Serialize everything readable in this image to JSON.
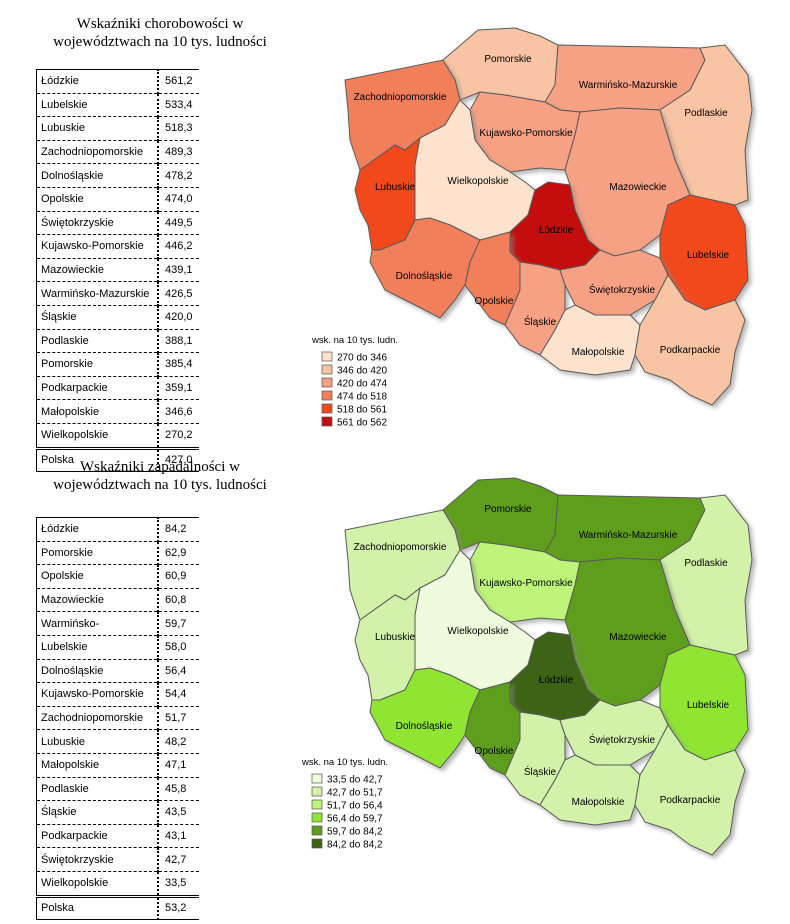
{
  "section1": {
    "title_line1": "Wskaźniki chorobowości w",
    "title_line2": "województwach na 10 tys. ludności",
    "rows": [
      {
        "name": "Łódzkie",
        "value": "561,2"
      },
      {
        "name": "Lubelskie",
        "value": "533,4"
      },
      {
        "name": "Lubuskie",
        "value": "518,3"
      },
      {
        "name": "Zachodniopomorskie",
        "value": "489,3"
      },
      {
        "name": "Dolnośląskie",
        "value": "478,2"
      },
      {
        "name": "Opolskie",
        "value": "474,0"
      },
      {
        "name": "Świętokrzyskie",
        "value": "449,5"
      },
      {
        "name": "Kujawsko-Pomorskie",
        "value": "446,2"
      },
      {
        "name": "Mazowieckie",
        "value": "439,1"
      },
      {
        "name": "Warmińsko-Mazurskie",
        "value": "426,5"
      },
      {
        "name": "Śląskie",
        "value": "420,0"
      },
      {
        "name": "Podlaskie",
        "value": "388,1"
      },
      {
        "name": "Pomorskie",
        "value": "385,4"
      },
      {
        "name": "Podkarpackie",
        "value": "359,1"
      },
      {
        "name": "Małopolskie",
        "value": "346,6"
      },
      {
        "name": "Wielkopolskie",
        "value": "270,2"
      }
    ],
    "total": {
      "name": "Polska",
      "value": "427,0"
    },
    "map": {
      "legend_title": "wsk. na 10 tys. ludn.",
      "legend": [
        {
          "label": "270 do 346",
          "color": "#fde3cd"
        },
        {
          "label": "346 do 420",
          "color": "#f9c4a3"
        },
        {
          "label": "420 do 474",
          "color": "#f6a084"
        },
        {
          "label": "474 do 518",
          "color": "#f07f5a"
        },
        {
          "label": "518 do 561",
          "color": "#f14a1c"
        },
        {
          "label": "561 do 562",
          "color": "#c40f0f"
        }
      ],
      "regions": [
        {
          "name": "Pomorskie",
          "class": 1
        },
        {
          "name": "Warmińsko-Mazurskie",
          "class": 2
        },
        {
          "name": "Zachodniopomorskie",
          "class": 3
        },
        {
          "name": "Podlaskie",
          "class": 1
        },
        {
          "name": "Kujawsko-Pomorskie",
          "class": 2
        },
        {
          "name": "Lubuskie",
          "class": 4
        },
        {
          "name": "Wielkopolskie",
          "class": 0
        },
        {
          "name": "Mazowieckie",
          "class": 2
        },
        {
          "name": "Łódzkie",
          "class": 5
        },
        {
          "name": "Lubelskie",
          "class": 4
        },
        {
          "name": "Dolnośląskie",
          "class": 3
        },
        {
          "name": "Opolskie",
          "class": 3
        },
        {
          "name": "Śląskie",
          "class": 2
        },
        {
          "name": "Świętokrzyskie",
          "class": 2
        },
        {
          "name": "Małopolskie",
          "class": 0
        },
        {
          "name": "Podkarpackie",
          "class": 1
        }
      ]
    }
  },
  "section2": {
    "title_line1": "Wskaźniki zapadalności w",
    "title_line2": "województwach na 10 tys. ludności",
    "rows": [
      {
        "name": "Łódzkie",
        "value": "84,2"
      },
      {
        "name": "Pomorskie",
        "value": "62,9"
      },
      {
        "name": "Opolskie",
        "value": "60,9"
      },
      {
        "name": "Mazowieckie",
        "value": "60,8"
      },
      {
        "name": "Warmińsko-",
        "value": "59,7"
      },
      {
        "name": "Lubelskie",
        "value": "58,0"
      },
      {
        "name": "Dolnośląskie",
        "value": "56,4"
      },
      {
        "name": "Kujawsko-Pomorskie",
        "value": "54,4"
      },
      {
        "name": "Zachodniopomorskie",
        "value": "51,7"
      },
      {
        "name": "Lubuskie",
        "value": "48,2"
      },
      {
        "name": "Małopolskie",
        "value": "47,1"
      },
      {
        "name": "Podlaskie",
        "value": "45,8"
      },
      {
        "name": "Śląskie",
        "value": "43,5"
      },
      {
        "name": "Podkarpackie",
        "value": "43,1"
      },
      {
        "name": "Świętokrzyskie",
        "value": "42,7"
      },
      {
        "name": "Wielkopolskie",
        "value": "33,5"
      }
    ],
    "total": {
      "name": "Polska",
      "value": "53,2"
    },
    "map": {
      "legend_title": "wsk. na 10 tys. ludn.",
      "legend": [
        {
          "label": "33,5 do 42,7",
          "color": "#eefbdc"
        },
        {
          "label": "42,7 do 51,7",
          "color": "#d3f2a9"
        },
        {
          "label": "51,7 do 56,4",
          "color": "#bdf57a"
        },
        {
          "label": "56,4 do 59,7",
          "color": "#8fe532"
        },
        {
          "label": "59,7 do 84,2",
          "color": "#5e9e1e"
        },
        {
          "label": "84,2 do 84,2",
          "color": "#3d6412"
        }
      ],
      "regions": [
        {
          "name": "Pomorskie",
          "class": 4
        },
        {
          "name": "Warmińsko-Mazurskie",
          "class": 4
        },
        {
          "name": "Zachodniopomorskie",
          "class": 1
        },
        {
          "name": "Podlaskie",
          "class": 1
        },
        {
          "name": "Kujawsko-Pomorskie",
          "class": 2
        },
        {
          "name": "Lubuskie",
          "class": 1
        },
        {
          "name": "Wielkopolskie",
          "class": 0
        },
        {
          "name": "Mazowieckie",
          "class": 4
        },
        {
          "name": "Łódzkie",
          "class": 5
        },
        {
          "name": "Lubelskie",
          "class": 3
        },
        {
          "name": "Dolnośląskie",
          "class": 3
        },
        {
          "name": "Opolskie",
          "class": 4
        },
        {
          "name": "Śląskie",
          "class": 1
        },
        {
          "name": "Świętokrzyskie",
          "class": 1
        },
        {
          "name": "Małopolskie",
          "class": 1
        },
        {
          "name": "Podkarpackie",
          "class": 1
        }
      ]
    }
  }
}
